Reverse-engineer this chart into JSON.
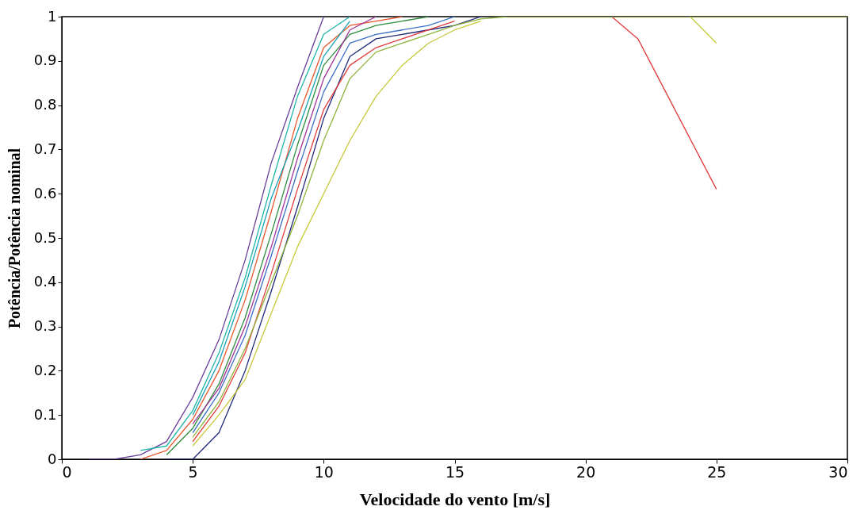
{
  "chart_data": {
    "type": "line",
    "xlabel": "Velocidade do vento [m/s]",
    "ylabel": "Potência/Potência nominal",
    "xlim": [
      0,
      30
    ],
    "xticks": [
      0,
      5,
      10,
      15,
      20,
      25,
      30
    ],
    "ylim": [
      0,
      1
    ],
    "yticks": [
      0,
      0.1,
      0.2,
      0.3,
      0.4,
      0.5,
      0.6,
      0.7,
      0.8,
      0.9,
      1
    ],
    "grid": false,
    "legend": false,
    "line_style": "solid",
    "marker": "none",
    "series": [
      {
        "color": "#6a3d9a",
        "x": [
          1,
          2,
          3,
          4,
          5,
          6,
          7,
          8,
          9,
          10
        ],
        "values": [
          0,
          0,
          0.01,
          0.04,
          0.14,
          0.27,
          0.45,
          0.67,
          0.84,
          1
        ]
      },
      {
        "color": "#1fb5a8",
        "x": [
          3,
          4,
          5,
          6,
          7,
          8,
          9,
          10,
          11
        ],
        "values": [
          0.02,
          0.03,
          0.11,
          0.24,
          0.41,
          0.62,
          0.82,
          0.96,
          1
        ]
      },
      {
        "color": "#e8562a",
        "x": [
          3,
          4,
          5,
          6,
          7,
          8,
          9,
          10,
          11,
          12,
          13
        ],
        "values": [
          0,
          0.02,
          0.09,
          0.2,
          0.36,
          0.56,
          0.77,
          0.93,
          0.98,
          0.99,
          1
        ]
      },
      {
        "color": "#2e8b3e",
        "x": [
          4,
          5,
          6,
          7,
          8,
          9,
          10,
          11,
          12,
          13,
          14
        ],
        "values": [
          0.01,
          0.07,
          0.17,
          0.32,
          0.51,
          0.71,
          0.89,
          0.96,
          0.98,
          0.99,
          1
        ]
      },
      {
        "color": "#3a6fc4",
        "x": [
          5,
          6,
          7,
          8,
          9,
          10,
          11,
          12,
          13,
          14,
          15
        ],
        "values": [
          0.06,
          0.15,
          0.28,
          0.46,
          0.65,
          0.83,
          0.94,
          0.96,
          0.97,
          0.98,
          1
        ]
      },
      {
        "color": "#1f2a7a",
        "x": [
          4,
          5,
          6,
          7,
          8,
          9,
          10,
          11,
          12,
          13,
          14,
          15,
          16
        ],
        "values": [
          0,
          0,
          0.06,
          0.2,
          0.38,
          0.57,
          0.77,
          0.91,
          0.95,
          0.96,
          0.97,
          0.98,
          1
        ]
      },
      {
        "color": "#a0329a",
        "x": [
          5,
          6,
          7,
          8,
          9,
          10,
          11,
          12
        ],
        "values": [
          0.08,
          0.16,
          0.3,
          0.48,
          0.68,
          0.86,
          0.97,
          1
        ]
      },
      {
        "color": "#17a2b8",
        "x": [
          5,
          6,
          7,
          8,
          9,
          10,
          11
        ],
        "values": [
          0.1,
          0.22,
          0.39,
          0.59,
          0.74,
          0.91,
          0.99
        ]
      },
      {
        "color": "#e03c3c",
        "x": [
          5,
          6,
          7,
          8,
          9,
          10,
          11,
          12,
          13,
          14,
          15,
          null,
          21,
          22,
          25
        ],
        "values": [
          0.04,
          0.12,
          0.24,
          0.42,
          0.61,
          0.79,
          0.89,
          0.93,
          0.95,
          0.97,
          0.99,
          null,
          1,
          0.95,
          0.61
        ]
      },
      {
        "color": "#c8c83c",
        "x": [
          5,
          6,
          7,
          8,
          9,
          10,
          11,
          12,
          13,
          14,
          15,
          16,
          null,
          24,
          25
        ],
        "values": [
          0.03,
          0.1,
          0.18,
          0.33,
          0.48,
          0.6,
          0.72,
          0.82,
          0.89,
          0.94,
          0.97,
          0.99,
          null,
          1,
          0.94
        ]
      },
      {
        "color": "#8db33a",
        "x": [
          5,
          6,
          7,
          8,
          9,
          10,
          11,
          12,
          13,
          14,
          15,
          16,
          17,
          18,
          19,
          20,
          21,
          22,
          23,
          24,
          25,
          26,
          27,
          28,
          29,
          30
        ],
        "values": [
          0.05,
          0.13,
          0.25,
          0.4,
          0.55,
          0.72,
          0.86,
          0.92,
          0.94,
          0.96,
          0.98,
          0.995,
          1,
          1,
          1,
          1,
          1,
          1,
          1,
          1,
          1,
          1,
          1,
          1,
          1,
          1
        ]
      }
    ]
  }
}
